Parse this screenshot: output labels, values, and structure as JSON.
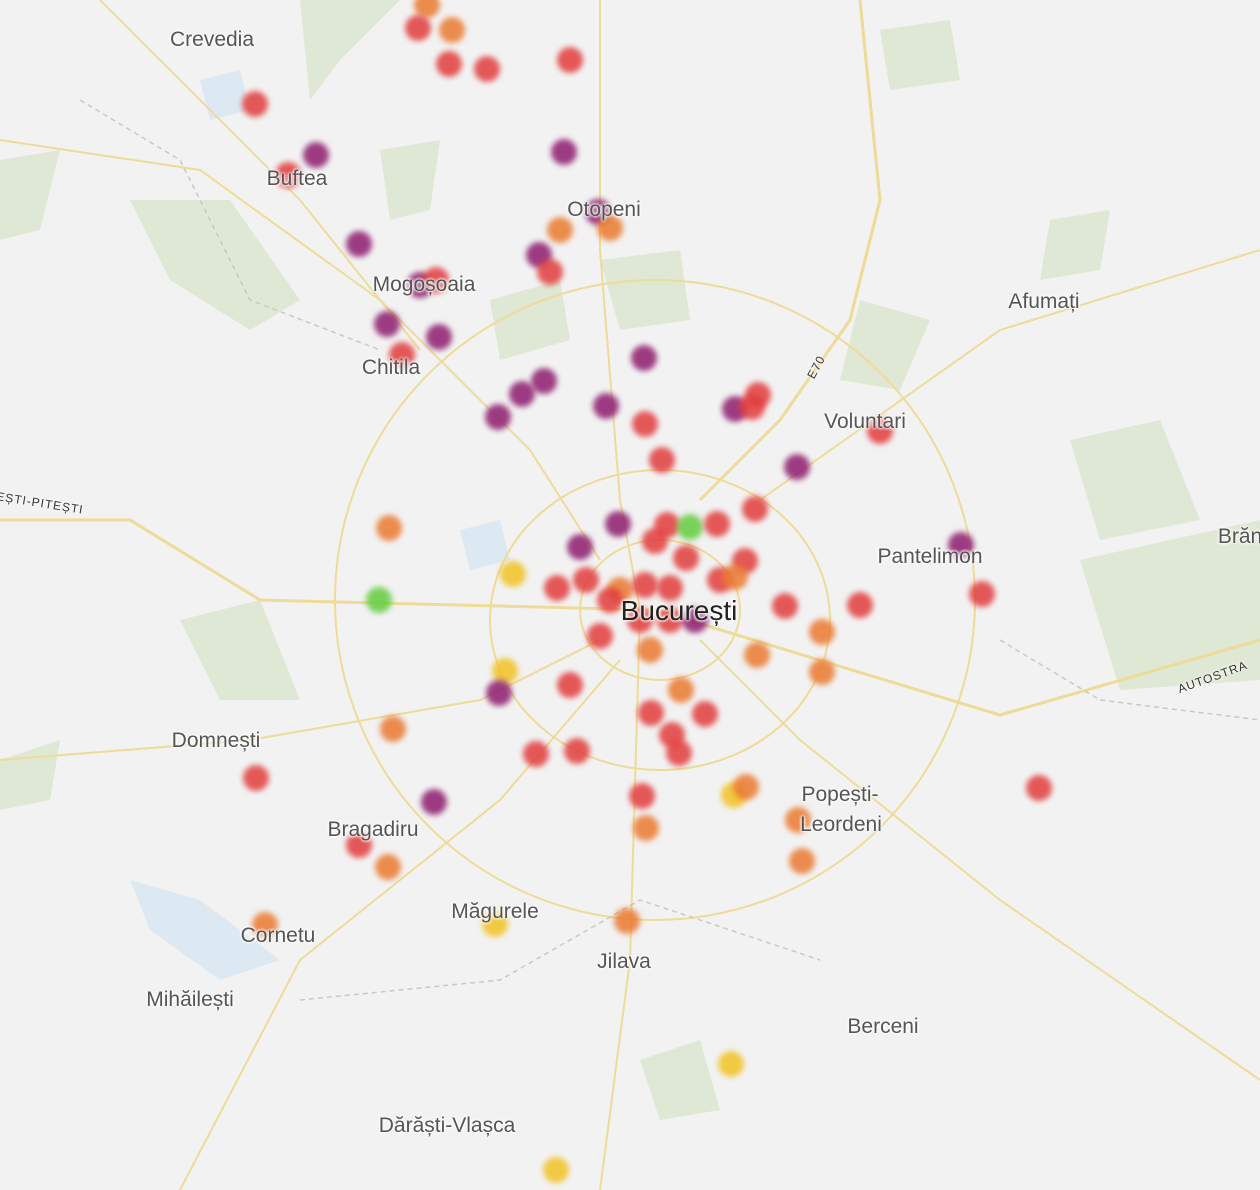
{
  "map": {
    "place_labels": [
      {
        "name": "Crevedia"
      },
      {
        "name": "Buftea"
      },
      {
        "name": "Otopeni"
      },
      {
        "name": "Mogoșoaia"
      },
      {
        "name": "Chitila"
      },
      {
        "name": "Afumați"
      },
      {
        "name": "Voluntari"
      },
      {
        "name": "Pantelimon"
      },
      {
        "name": "București"
      },
      {
        "name": "Domnești"
      },
      {
        "name": "Bragadiru"
      },
      {
        "name": "Popești-"
      },
      {
        "name": "Leordeni"
      },
      {
        "name": "Măgurele"
      },
      {
        "name": "Cornetu"
      },
      {
        "name": "Jilava"
      },
      {
        "name": "Mihăilești"
      },
      {
        "name": "Berceni"
      },
      {
        "name": "Dărăști-Vlașca"
      },
      {
        "name": "Brăn"
      }
    ],
    "road_labels": [
      {
        "name": "EȘTI-PITEȘTI"
      },
      {
        "name": "E70"
      },
      {
        "name": "AUTOSTRA"
      }
    ],
    "marker_colors": {
      "red": "#e23d3d",
      "purple": "#8e1c6e",
      "orange": "#ea7a30",
      "yellow": "#f2c224",
      "green": "#63cc3e"
    }
  }
}
